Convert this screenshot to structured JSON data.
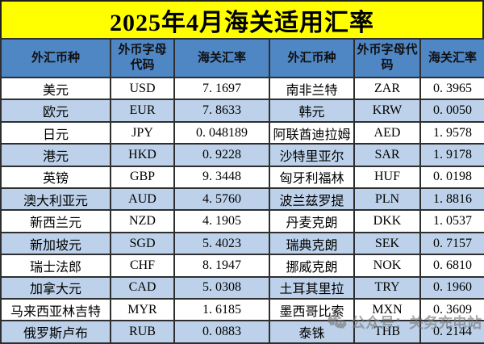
{
  "title": "2025年4月海关适用汇率",
  "table": {
    "headers": [
      "外汇币种",
      "外币字母代码",
      "海关汇率",
      "外汇币种",
      "外币字母代码",
      "海关汇率"
    ],
    "rows": [
      {
        "c1": "美元",
        "c2": "USD",
        "c3": "7. 1697",
        "c4": "南非兰特",
        "c5": "ZAR",
        "c6": "0. 3965"
      },
      {
        "c1": "欧元",
        "c2": "EUR",
        "c3": "7. 8633",
        "c4": "韩元",
        "c5": "KRW",
        "c6": "0. 0050"
      },
      {
        "c1": "日元",
        "c2": "JPY",
        "c3": "0. 048189",
        "c4": "阿联酋迪拉姆",
        "c5": "AED",
        "c6": "1. 9578"
      },
      {
        "c1": "港元",
        "c2": "HKD",
        "c3": "0. 9228",
        "c4": "沙特里亚尔",
        "c5": "SAR",
        "c6": "1. 9178"
      },
      {
        "c1": "英镑",
        "c2": "GBP",
        "c3": "9. 3448",
        "c4": "匈牙利福林",
        "c5": "HUF",
        "c6": "0. 0198"
      },
      {
        "c1": "澳大利亚元",
        "c2": "AUD",
        "c3": "4. 5760",
        "c4": "波兰兹罗提",
        "c5": "PLN",
        "c6": "1. 8816"
      },
      {
        "c1": "新西兰元",
        "c2": "NZD",
        "c3": "4. 1905",
        "c4": "丹麦克朗",
        "c5": "DKK",
        "c6": "1. 0537"
      },
      {
        "c1": "新加坡元",
        "c2": "SGD",
        "c3": "5. 4023",
        "c4": "瑞典克朗",
        "c5": "SEK",
        "c6": "0. 7157"
      },
      {
        "c1": "瑞士法郎",
        "c2": "CHF",
        "c3": "8. 1947",
        "c4": "挪威克朗",
        "c5": "NOK",
        "c6": "0. 6810"
      },
      {
        "c1": "加拿大元",
        "c2": "CAD",
        "c3": "5. 0308",
        "c4": "土耳其里拉",
        "c5": "TRY",
        "c6": "0. 1960"
      },
      {
        "c1": "马来西亚林吉特",
        "c2": "MYR",
        "c3": "1. 6185",
        "c4": "墨西哥比索",
        "c5": "MXN",
        "c6": "0. 3609"
      },
      {
        "c1": "俄罗斯卢布",
        "c2": "RUB",
        "c3": "0. 0883",
        "c4": "泰铢",
        "c5": "THB",
        "c6": "0. 2144"
      }
    ]
  },
  "watermark": {
    "text": "公众号：关务充电站",
    "icon": "wechat-icon"
  },
  "colors": {
    "banner_bg": "#ffff00",
    "header_bg": "#4f86c4",
    "row_alt_bg": "#bdd2ea",
    "row_bg": "#ffffff",
    "border": "#2e2e2e",
    "text": "#000000",
    "watermark": "#767676"
  }
}
